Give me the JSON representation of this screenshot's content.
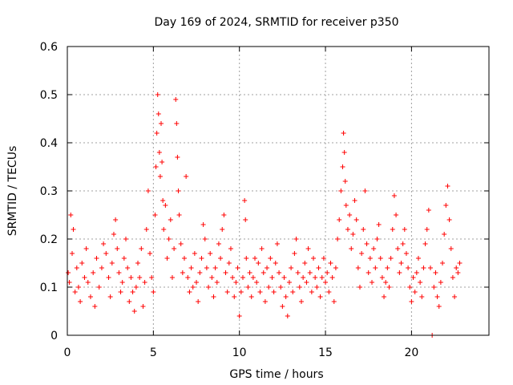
{
  "chart_data": {
    "type": "scatter",
    "title": "Day 169 of 2024, SRMTID for receiver p350",
    "xlabel": "GPS time / hours",
    "ylabel": "SRMTID / TECUs",
    "xlim": [
      0,
      24.5
    ],
    "ylim": [
      0,
      0.6
    ],
    "x_ticks": [
      0,
      5,
      10,
      15,
      20
    ],
    "x_tick_labels": [
      "0",
      "5",
      "10",
      "15",
      "20"
    ],
    "y_ticks": [
      0,
      0.1,
      0.2,
      0.3,
      0.4,
      0.5,
      0.6
    ],
    "y_tick_labels": [
      "0",
      "0.1",
      "0.2",
      "0.3",
      "0.4",
      "0.5",
      "0.6"
    ],
    "grid": true,
    "marker": "+",
    "color": "#ff0000",
    "series": [
      {
        "name": "SRMTID",
        "points": [
          [
            0.05,
            0.13
          ],
          [
            0.12,
            0.11
          ],
          [
            0.2,
            0.25
          ],
          [
            0.28,
            0.17
          ],
          [
            0.35,
            0.22
          ],
          [
            0.45,
            0.09
          ],
          [
            0.55,
            0.14
          ],
          [
            0.65,
            0.1
          ],
          [
            0.75,
            0.07
          ],
          [
            0.85,
            0.15
          ],
          [
            1.0,
            0.12
          ],
          [
            1.1,
            0.18
          ],
          [
            1.2,
            0.11
          ],
          [
            1.35,
            0.08
          ],
          [
            1.5,
            0.13
          ],
          [
            1.6,
            0.06
          ],
          [
            1.7,
            0.16
          ],
          [
            1.85,
            0.1
          ],
          [
            2.0,
            0.14
          ],
          [
            2.1,
            0.19
          ],
          [
            2.25,
            0.17
          ],
          [
            2.4,
            0.12
          ],
          [
            2.5,
            0.08
          ],
          [
            2.6,
            0.15
          ],
          [
            2.7,
            0.21
          ],
          [
            2.8,
            0.24
          ],
          [
            2.9,
            0.18
          ],
          [
            3.0,
            0.13
          ],
          [
            3.1,
            0.09
          ],
          [
            3.2,
            0.11
          ],
          [
            3.3,
            0.16
          ],
          [
            3.4,
            0.2
          ],
          [
            3.5,
            0.14
          ],
          [
            3.6,
            0.07
          ],
          [
            3.7,
            0.12
          ],
          [
            3.8,
            0.09
          ],
          [
            3.9,
            0.05
          ],
          [
            4.0,
            0.1
          ],
          [
            4.1,
            0.15
          ],
          [
            4.2,
            0.12
          ],
          [
            4.3,
            0.18
          ],
          [
            4.4,
            0.06
          ],
          [
            4.5,
            0.11
          ],
          [
            4.6,
            0.22
          ],
          [
            4.7,
            0.3
          ],
          [
            4.8,
            0.17
          ],
          [
            4.9,
            0.12
          ],
          [
            5.0,
            0.09
          ],
          [
            5.1,
            0.25
          ],
          [
            5.15,
            0.35
          ],
          [
            5.2,
            0.42
          ],
          [
            5.25,
            0.5
          ],
          [
            5.3,
            0.46
          ],
          [
            5.35,
            0.38
          ],
          [
            5.4,
            0.33
          ],
          [
            5.45,
            0.44
          ],
          [
            5.5,
            0.36
          ],
          [
            5.55,
            0.28
          ],
          [
            5.6,
            0.22
          ],
          [
            5.7,
            0.27
          ],
          [
            5.8,
            0.16
          ],
          [
            5.9,
            0.2
          ],
          [
            6.0,
            0.24
          ],
          [
            6.1,
            0.12
          ],
          [
            6.2,
            0.18
          ],
          [
            6.3,
            0.49
          ],
          [
            6.35,
            0.44
          ],
          [
            6.4,
            0.37
          ],
          [
            6.45,
            0.3
          ],
          [
            6.5,
            0.25
          ],
          [
            6.6,
            0.19
          ],
          [
            6.7,
            0.13
          ],
          [
            6.8,
            0.16
          ],
          [
            6.9,
            0.33
          ],
          [
            7.0,
            0.12
          ],
          [
            7.1,
            0.09
          ],
          [
            7.2,
            0.14
          ],
          [
            7.3,
            0.1
          ],
          [
            7.4,
            0.17
          ],
          [
            7.5,
            0.11
          ],
          [
            7.6,
            0.07
          ],
          [
            7.7,
            0.13
          ],
          [
            7.8,
            0.16
          ],
          [
            7.9,
            0.23
          ],
          [
            8.0,
            0.2
          ],
          [
            8.1,
            0.14
          ],
          [
            8.2,
            0.1
          ],
          [
            8.3,
            0.17
          ],
          [
            8.4,
            0.12
          ],
          [
            8.5,
            0.08
          ],
          [
            8.6,
            0.14
          ],
          [
            8.7,
            0.11
          ],
          [
            8.8,
            0.19
          ],
          [
            8.9,
            0.16
          ],
          [
            9.0,
            0.22
          ],
          [
            9.1,
            0.25
          ],
          [
            9.2,
            0.13
          ],
          [
            9.3,
            0.09
          ],
          [
            9.4,
            0.15
          ],
          [
            9.5,
            0.18
          ],
          [
            9.6,
            0.12
          ],
          [
            9.7,
            0.08
          ],
          [
            9.8,
            0.11
          ],
          [
            9.9,
            0.14
          ],
          [
            10.0,
            0.04
          ],
          [
            10.1,
            0.09
          ],
          [
            10.2,
            0.12
          ],
          [
            10.3,
            0.28
          ],
          [
            10.35,
            0.24
          ],
          [
            10.4,
            0.16
          ],
          [
            10.5,
            0.1
          ],
          [
            10.6,
            0.13
          ],
          [
            10.7,
            0.08
          ],
          [
            10.8,
            0.12
          ],
          [
            10.9,
            0.16
          ],
          [
            11.0,
            0.11
          ],
          [
            11.1,
            0.15
          ],
          [
            11.2,
            0.09
          ],
          [
            11.3,
            0.18
          ],
          [
            11.4,
            0.13
          ],
          [
            11.5,
            0.07
          ],
          [
            11.6,
            0.14
          ],
          [
            11.7,
            0.1
          ],
          [
            11.8,
            0.16
          ],
          [
            11.9,
            0.12
          ],
          [
            12.0,
            0.09
          ],
          [
            12.1,
            0.15
          ],
          [
            12.2,
            0.19
          ],
          [
            12.3,
            0.13
          ],
          [
            12.4,
            0.1
          ],
          [
            12.5,
            0.06
          ],
          [
            12.6,
            0.12
          ],
          [
            12.7,
            0.08
          ],
          [
            12.8,
            0.04
          ],
          [
            12.9,
            0.11
          ],
          [
            13.0,
            0.14
          ],
          [
            13.1,
            0.09
          ],
          [
            13.2,
            0.17
          ],
          [
            13.3,
            0.2
          ],
          [
            13.4,
            0.13
          ],
          [
            13.5,
            0.1
          ],
          [
            13.6,
            0.07
          ],
          [
            13.7,
            0.12
          ],
          [
            13.8,
            0.15
          ],
          [
            13.9,
            0.11
          ],
          [
            14.0,
            0.18
          ],
          [
            14.1,
            0.13
          ],
          [
            14.2,
            0.09
          ],
          [
            14.3,
            0.16
          ],
          [
            14.4,
            0.12
          ],
          [
            14.5,
            0.1
          ],
          [
            14.6,
            0.14
          ],
          [
            14.7,
            0.08
          ],
          [
            14.8,
            0.12
          ],
          [
            14.9,
            0.16
          ],
          [
            15.0,
            0.11
          ],
          [
            15.1,
            0.13
          ],
          [
            15.2,
            0.09
          ],
          [
            15.3,
            0.15
          ],
          [
            15.4,
            0.12
          ],
          [
            15.5,
            0.07
          ],
          [
            15.6,
            0.14
          ],
          [
            15.7,
            0.2
          ],
          [
            15.8,
            0.24
          ],
          [
            15.9,
            0.3
          ],
          [
            16.0,
            0.35
          ],
          [
            16.05,
            0.42
          ],
          [
            16.1,
            0.38
          ],
          [
            16.15,
            0.32
          ],
          [
            16.2,
            0.27
          ],
          [
            16.3,
            0.22
          ],
          [
            16.4,
            0.25
          ],
          [
            16.5,
            0.18
          ],
          [
            16.6,
            0.21
          ],
          [
            16.7,
            0.28
          ],
          [
            16.8,
            0.24
          ],
          [
            16.9,
            0.14
          ],
          [
            17.0,
            0.1
          ],
          [
            17.1,
            0.17
          ],
          [
            17.2,
            0.22
          ],
          [
            17.3,
            0.3
          ],
          [
            17.4,
            0.19
          ],
          [
            17.5,
            0.13
          ],
          [
            17.6,
            0.16
          ],
          [
            17.7,
            0.11
          ],
          [
            17.8,
            0.18
          ],
          [
            17.9,
            0.14
          ],
          [
            18.0,
            0.2
          ],
          [
            18.1,
            0.23
          ],
          [
            18.2,
            0.16
          ],
          [
            18.3,
            0.12
          ],
          [
            18.4,
            0.08
          ],
          [
            18.5,
            0.11
          ],
          [
            18.6,
            0.14
          ],
          [
            18.7,
            0.1
          ],
          [
            18.8,
            0.16
          ],
          [
            18.9,
            0.22
          ],
          [
            19.0,
            0.29
          ],
          [
            19.1,
            0.25
          ],
          [
            19.2,
            0.18
          ],
          [
            19.3,
            0.13
          ],
          [
            19.4,
            0.15
          ],
          [
            19.5,
            0.19
          ],
          [
            19.6,
            0.22
          ],
          [
            19.7,
            0.17
          ],
          [
            19.8,
            0.14
          ],
          [
            19.9,
            0.1
          ],
          [
            20.0,
            0.07
          ],
          [
            20.1,
            0.12
          ],
          [
            20.2,
            0.09
          ],
          [
            20.3,
            0.13
          ],
          [
            20.4,
            0.16
          ],
          [
            20.5,
            0.11
          ],
          [
            20.6,
            0.08
          ],
          [
            20.7,
            0.14
          ],
          [
            20.8,
            0.19
          ],
          [
            20.9,
            0.22
          ],
          [
            21.0,
            0.26
          ],
          [
            21.1,
            0.14
          ],
          [
            21.2,
            0.0
          ],
          [
            21.3,
            0.1
          ],
          [
            21.4,
            0.13
          ],
          [
            21.5,
            0.08
          ],
          [
            21.6,
            0.06
          ],
          [
            21.7,
            0.11
          ],
          [
            21.8,
            0.15
          ],
          [
            21.9,
            0.21
          ],
          [
            22.0,
            0.27
          ],
          [
            22.1,
            0.31
          ],
          [
            22.2,
            0.24
          ],
          [
            22.3,
            0.18
          ],
          [
            22.4,
            0.12
          ],
          [
            22.5,
            0.08
          ],
          [
            22.6,
            0.14
          ],
          [
            22.7,
            0.13
          ],
          [
            22.8,
            0.15
          ]
        ]
      }
    ]
  }
}
